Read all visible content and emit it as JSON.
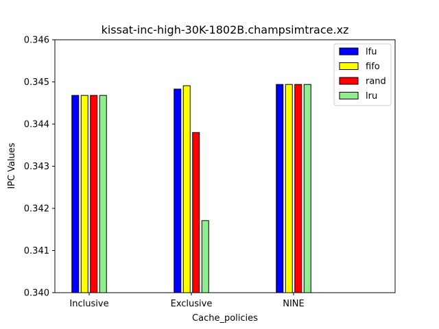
{
  "chart_data": {
    "type": "bar",
    "title": "kissat-inc-high-30K-1802B.champsimtrace.xz",
    "xlabel": "Cache_policies",
    "ylabel": "IPC Values",
    "categories": [
      "Inclusive",
      "Exclusive",
      "NINE"
    ],
    "ylim": [
      0.34,
      0.346
    ],
    "yticks": [
      "0.340",
      "0.341",
      "0.342",
      "0.343",
      "0.344",
      "0.345",
      "0.346"
    ],
    "grid": false,
    "legend_position": "top-right",
    "series": [
      {
        "name": "lfu",
        "color": "#0000ff",
        "values": [
          0.34468,
          0.34483,
          0.34494
        ]
      },
      {
        "name": "fifo",
        "color": "#ffff00",
        "values": [
          0.34468,
          0.34491,
          0.34494
        ]
      },
      {
        "name": "rand",
        "color": "#ff0000",
        "values": [
          0.34468,
          0.3438,
          0.34494
        ]
      },
      {
        "name": "lru",
        "color": "#90ee90",
        "values": [
          0.34468,
          0.34171,
          0.34494
        ]
      }
    ]
  }
}
